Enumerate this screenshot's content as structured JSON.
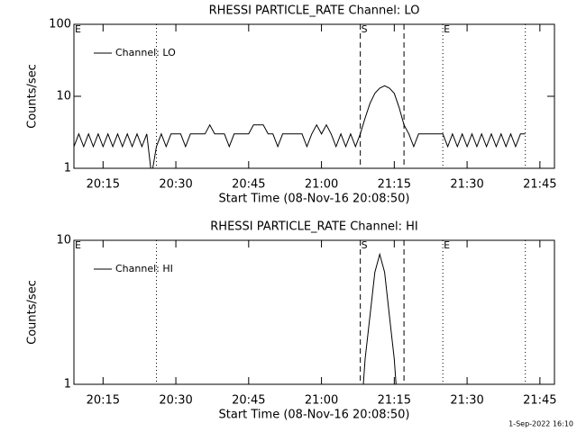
{
  "chart_data": [
    {
      "type": "line",
      "title": "RHESSI PARTICLE_RATE Channel: LO",
      "xlabel": "Start Time (08-Nov-16 20:08:50)",
      "ylabel": "Counts/sec",
      "log_y": true,
      "ylim": [
        1,
        100
      ],
      "yticks": [
        1,
        10,
        100
      ],
      "xlim": [
        "20:09",
        "21:48"
      ],
      "xticks": [
        "20:15",
        "20:30",
        "20:45",
        "21:00",
        "21:15",
        "21:30",
        "21:45"
      ],
      "vlines": [
        {
          "x": "20:26",
          "style": "dotted"
        },
        {
          "x": "21:08",
          "style": "dashed"
        },
        {
          "x": "21:17",
          "style": "dashed"
        },
        {
          "x": "21:25",
          "style": "dotted"
        },
        {
          "x": "21:42",
          "style": "dotted"
        }
      ],
      "markers": [
        {
          "text": "E",
          "x": "20:09"
        },
        {
          "text": "S",
          "x": "21:08"
        },
        {
          "text": "E",
          "x": "21:25"
        }
      ],
      "legend": "upper left",
      "x": [
        "20:09",
        "20:10",
        "20:11",
        "20:12",
        "20:13",
        "20:14",
        "20:15",
        "20:16",
        "20:17",
        "20:18",
        "20:19",
        "20:20",
        "20:21",
        "20:22",
        "20:23",
        "20:24",
        "20:25",
        "20:26",
        "20:27",
        "20:28",
        "20:29",
        "20:30",
        "20:31",
        "20:32",
        "20:33",
        "20:34",
        "20:35",
        "20:36",
        "20:37",
        "20:38",
        "20:39",
        "20:40",
        "20:41",
        "20:42",
        "20:43",
        "20:44",
        "20:45",
        "20:46",
        "20:47",
        "20:48",
        "20:49",
        "20:50",
        "20:51",
        "20:52",
        "20:53",
        "20:54",
        "20:55",
        "20:56",
        "20:57",
        "20:58",
        "20:59",
        "21:00",
        "21:01",
        "21:02",
        "21:03",
        "21:04",
        "21:05",
        "21:06",
        "21:07",
        "21:08",
        "21:09",
        "21:10",
        "21:11",
        "21:12",
        "21:13",
        "21:14",
        "21:15",
        "21:16",
        "21:17",
        "21:18",
        "21:19",
        "21:20",
        "21:21",
        "21:22",
        "21:23",
        "21:24",
        "21:25",
        "21:26",
        "21:27",
        "21:28",
        "21:29",
        "21:30",
        "21:31",
        "21:32",
        "21:33",
        "21:34",
        "21:35",
        "21:36",
        "21:37",
        "21:38",
        "21:39",
        "21:40",
        "21:41",
        "21:42"
      ],
      "series": [
        {
          "name": "Channel: LO",
          "color": "#000000",
          "values": [
            2,
            3,
            2,
            3,
            2,
            3,
            2,
            3,
            2,
            3,
            2,
            3,
            2,
            3,
            2,
            3,
            0.8,
            2,
            3,
            2,
            3,
            3,
            3,
            2,
            3,
            3,
            3,
            3,
            4,
            3,
            3,
            3,
            2,
            3,
            3,
            3,
            3,
            4,
            4,
            4,
            3,
            3,
            2,
            3,
            3,
            3,
            3,
            3,
            2,
            3,
            4,
            3,
            4,
            3,
            2,
            3,
            2,
            3,
            2,
            3,
            5,
            8,
            11,
            13,
            14,
            13,
            11,
            7,
            4,
            3,
            2,
            3,
            3,
            3,
            3,
            3,
            3,
            2,
            3,
            2,
            3,
            2,
            3,
            2,
            3,
            2,
            3,
            2,
            3,
            2,
            3,
            2,
            3,
            3
          ]
        }
      ]
    },
    {
      "type": "line",
      "title": "RHESSI PARTICLE_RATE Channel: HI",
      "xlabel": "Start Time (08-Nov-16 20:08:50)",
      "ylabel": "Counts/sec",
      "log_y": true,
      "ylim": [
        1,
        10
      ],
      "yticks": [
        1,
        10
      ],
      "xlim": [
        "20:09",
        "21:48"
      ],
      "xticks": [
        "20:15",
        "20:30",
        "20:45",
        "21:00",
        "21:15",
        "21:30",
        "21:45"
      ],
      "vlines": [
        {
          "x": "20:26",
          "style": "dotted"
        },
        {
          "x": "21:08",
          "style": "dashed"
        },
        {
          "x": "21:17",
          "style": "dashed"
        },
        {
          "x": "21:25",
          "style": "dotted"
        },
        {
          "x": "21:42",
          "style": "dotted"
        }
      ],
      "markers": [
        {
          "text": "E",
          "x": "20:09"
        },
        {
          "text": "S",
          "x": "21:08"
        },
        {
          "text": "E",
          "x": "21:25"
        }
      ],
      "legend": "upper left",
      "x": [
        "21:08",
        "21:09",
        "21:10",
        "21:11",
        "21:12",
        "21:13",
        "21:14",
        "21:15",
        "21:16"
      ],
      "series": [
        {
          "name": "Channel: HI",
          "color": "#000000",
          "values": [
            0.5,
            1.5,
            3,
            6,
            8,
            6,
            3,
            1.5,
            0.5
          ]
        }
      ]
    }
  ],
  "footer": "1-Sep-2022 16:10"
}
